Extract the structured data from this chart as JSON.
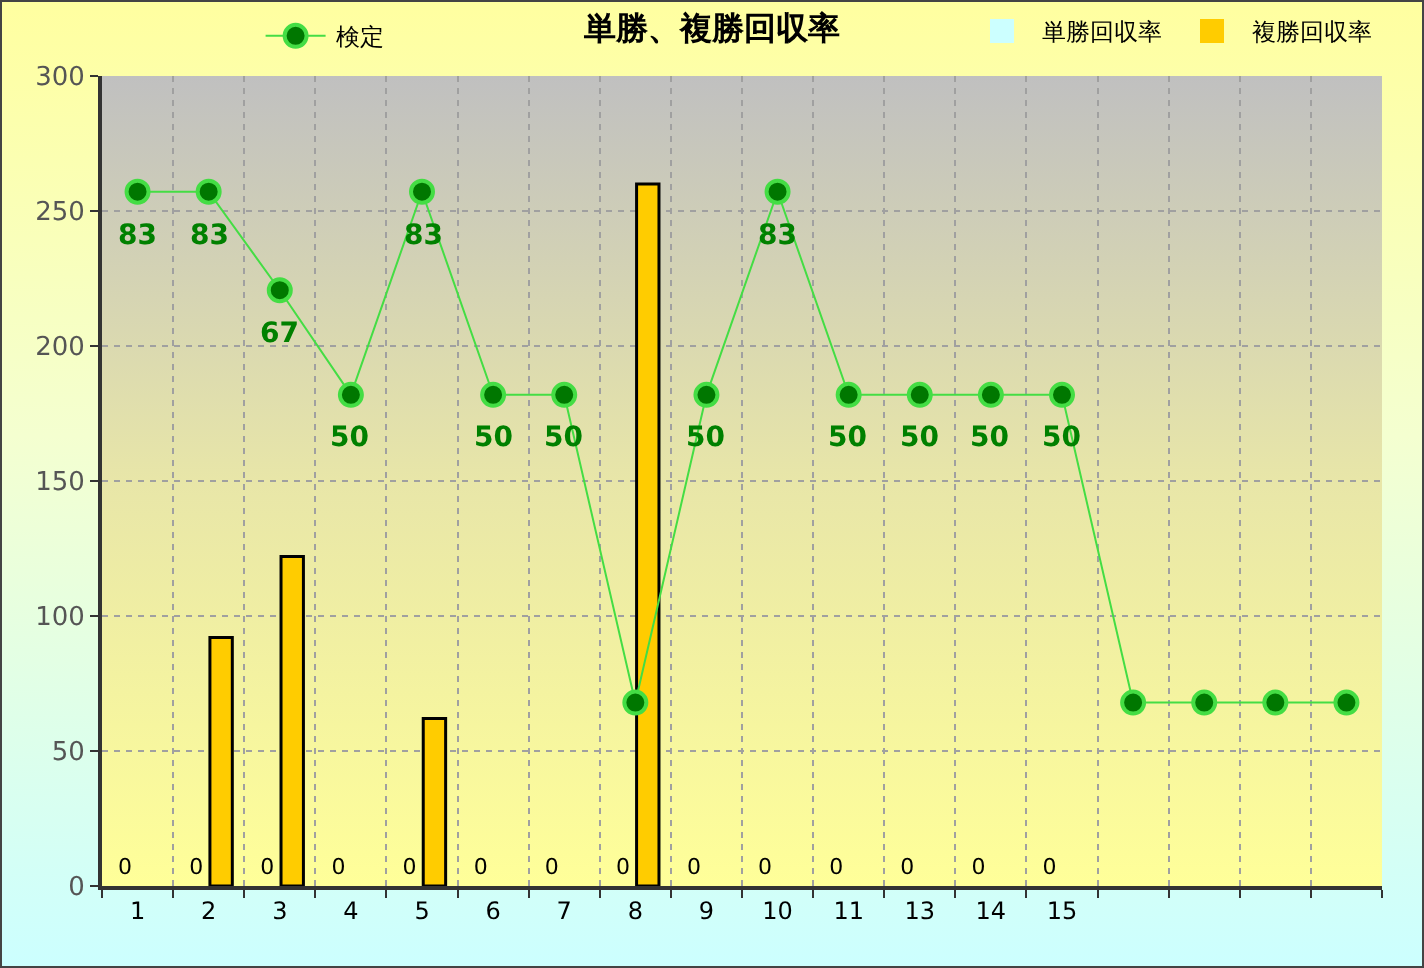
{
  "chart_data": {
    "type": "bar",
    "title": "単勝、複勝回収率",
    "categories": [
      "1",
      "2",
      "3",
      "4",
      "5",
      "6",
      "7",
      "8",
      "9",
      "10",
      "11",
      "13",
      "14",
      "15",
      null,
      null,
      null,
      null
    ],
    "series": [
      {
        "name": "検定",
        "type": "line",
        "axis": "y2",
        "color": "#44dd44",
        "marker": "circle",
        "line_style": "solid",
        "values": [
          83,
          83,
          67,
          50,
          83,
          50,
          50,
          0,
          50,
          83,
          50,
          50,
          50,
          50,
          0,
          0,
          0,
          0
        ],
        "value_labels": [
          "83",
          "83",
          "67",
          "50",
          "83",
          "50",
          "50",
          null,
          "50",
          "83",
          "50",
          "50",
          "50",
          "50",
          null,
          null,
          null,
          null
        ]
      },
      {
        "name": "単勝回収率",
        "color": "#ccffff",
        "values": [
          0,
          0,
          0,
          0,
          0,
          0,
          0,
          0,
          0,
          0,
          0,
          0,
          0,
          0,
          null,
          null,
          null,
          null
        ],
        "value_labels": [
          "0",
          "0",
          "0",
          "0",
          "0",
          "0",
          "0",
          "0",
          "0",
          "0",
          "0",
          "0",
          "0",
          "0",
          null,
          null,
          null,
          null
        ]
      },
      {
        "name": "複勝回収率",
        "color": "#ffcc00",
        "values": [
          0,
          92,
          122,
          0,
          62,
          0,
          0,
          260,
          0,
          0,
          0,
          0,
          0,
          0,
          null,
          null,
          null,
          null
        ]
      }
    ],
    "ylim": [
      0,
      300
    ],
    "yticks": [
      0,
      50,
      100,
      150,
      200,
      250,
      300
    ],
    "y2lim": [
      -29.8,
      101.8
    ],
    "tick_labels": "xy",
    "grid": true,
    "legend": "top"
  }
}
